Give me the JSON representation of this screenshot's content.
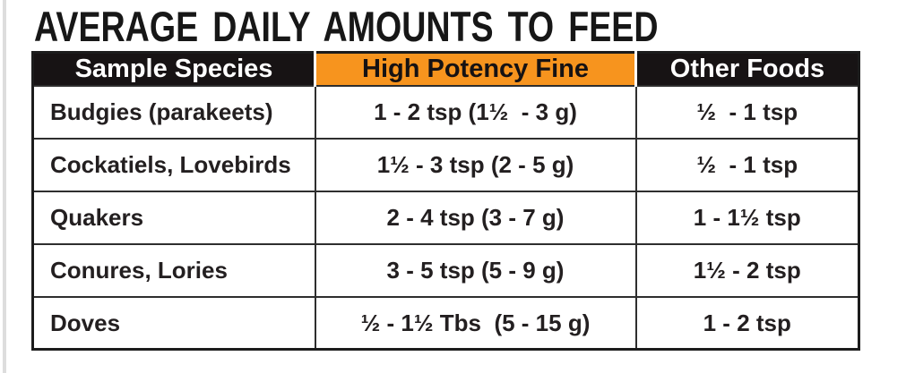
{
  "title": "AVERAGE DAILY AMOUNTS TO FEED",
  "colors": {
    "header_dark_bg": "#171314",
    "header_dark_text": "#ffffff",
    "header_accent_bg": "#f7941e",
    "header_accent_text": "#161213",
    "table_border": "#2e2e2e",
    "body_text": "#231f20",
    "page_bg": "#ffffff"
  },
  "table": {
    "columns": [
      {
        "key": "species",
        "label": "Sample Species"
      },
      {
        "key": "high_potency_fine",
        "label": "High Potency Fine"
      },
      {
        "key": "other_foods",
        "label": "Other Foods"
      }
    ],
    "rows": [
      {
        "species": "Budgies (parakeets)",
        "high_potency_fine": "1 - 2 tsp (1½  - 3 g)",
        "other_foods": "½  - 1 tsp"
      },
      {
        "species": "Cockatiels, Lovebirds",
        "high_potency_fine": "1½ - 3 tsp (2 - 5 g)",
        "other_foods": "½  - 1 tsp"
      },
      {
        "species": "Quakers",
        "high_potency_fine": "2 - 4 tsp (3 - 7 g)",
        "other_foods": "1 - 1½ tsp"
      },
      {
        "species": "Conures, Lories",
        "high_potency_fine": "3 - 5 tsp (5 - 9 g)",
        "other_foods": "1½ - 2 tsp"
      },
      {
        "species": "Doves",
        "high_potency_fine": "½ - 1½ Tbs  (5 - 15 g)",
        "other_foods": "1 - 2 tsp"
      }
    ]
  }
}
